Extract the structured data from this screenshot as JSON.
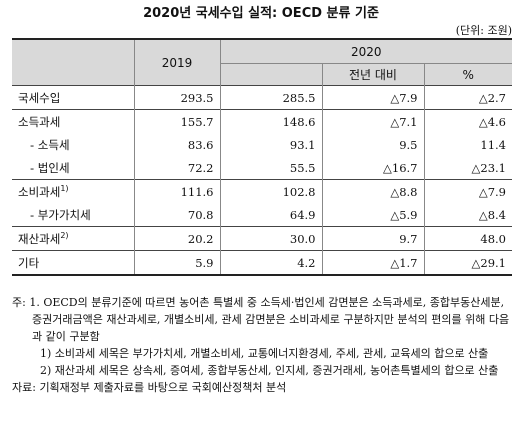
{
  "title": "2020년 국세수입 실적: OECD 분류 기준",
  "unit": "(단위: 조원)",
  "header": {
    "col_2019": "2019",
    "col_2020": "2020",
    "sub_yoy": "전년 대비",
    "sub_pct": "%"
  },
  "rows": [
    {
      "label": "국세수입",
      "v2019": "293.5",
      "v2020": "285.5",
      "yoy": "△7.9",
      "pct": "△2.7"
    },
    {
      "label": "소득과세",
      "v2019": "155.7",
      "v2020": "148.6",
      "yoy": "△7.1",
      "pct": "△4.6"
    },
    {
      "label": "- 소득세",
      "v2019": "83.6",
      "v2020": "93.1",
      "yoy": "9.5",
      "pct": "11.4"
    },
    {
      "label": "- 법인세",
      "v2019": "72.2",
      "v2020": "55.5",
      "yoy": "△16.7",
      "pct": "△23.1"
    },
    {
      "label": "소비과세",
      "sup": "1)",
      "v2019": "111.6",
      "v2020": "102.8",
      "yoy": "△8.8",
      "pct": "△7.9"
    },
    {
      "label": "- 부가가치세",
      "v2019": "70.8",
      "v2020": "64.9",
      "yoy": "△5.9",
      "pct": "△8.4"
    },
    {
      "label": "재산과세",
      "sup": "2)",
      "v2019": "20.2",
      "v2020": "30.0",
      "yoy": "9.7",
      "pct": "48.0"
    },
    {
      "label": "기타",
      "v2019": "5.9",
      "v2020": "4.2",
      "yoy": "△1.7",
      "pct": "△29.1"
    }
  ],
  "notes": {
    "n1": "주: 1. OECD의 분류기준에 따르면 농어촌 특별세 중 소득세·법인세 감면분은 소득과세로, 종합부동산세분, 증권거래금액은 재산과세로, 개별소비세, 관세 감면분은 소비과세로 구분하지만 분석의 편의를 위해 다음과 같이 구분함",
    "n2": "1) 소비과세 세목은 부가가치세, 개별소비세, 교통에너지환경세, 주세, 관세, 교육세의 합으로 산출",
    "n3": "2) 재산과세 세목은 상속세, 증여세, 종합부동산세, 인지세, 증권거래세, 농어촌특별세의 합으로 산출",
    "source": "자료: 기획재정부 제출자료를 바탕으로 국회예산정책처 분석"
  }
}
